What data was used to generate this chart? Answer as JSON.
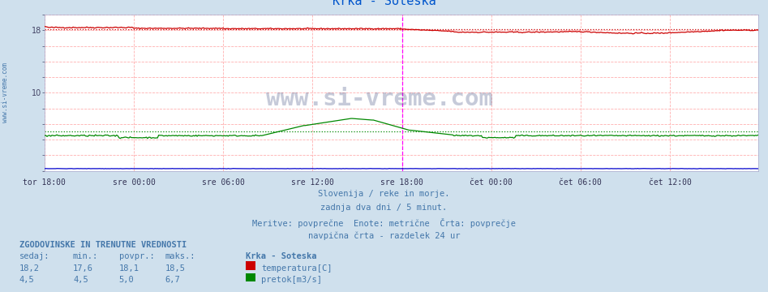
{
  "title": "Krka - Soteska",
  "title_color": "#0055cc",
  "fig_bg_color": "#cfe0ed",
  "plot_bg_color": "#ffffff",
  "total_points": 576,
  "ylim": [
    0,
    20
  ],
  "yticks": [
    0,
    2,
    4,
    6,
    8,
    10,
    12,
    14,
    16,
    18,
    20
  ],
  "xlabel_ticks": [
    "tor 18:00",
    "sre 00:00",
    "sre 06:00",
    "sre 12:00",
    "sre 18:00",
    "čet 00:00",
    "čet 06:00",
    "čet 12:00"
  ],
  "tick_positions": [
    0,
    72,
    144,
    216,
    288,
    360,
    432,
    504
  ],
  "temp_color": "#cc0000",
  "flow_color": "#008800",
  "height_color": "#0000cc",
  "grid_color": "#ffb0b0",
  "avg_temp": 18.1,
  "avg_flow": 5.0,
  "vline_color": "#ff00ff",
  "vline_pos": 288,
  "subtitle_lines": [
    "Slovenija / reke in morje.",
    "zadnja dva dni / 5 minut.",
    "Meritve: povprečne  Enote: metrične  Črta: povprečje",
    "navpična črta - razdelek 24 ur"
  ],
  "subtitle_color": "#4477aa",
  "watermark": "www.si-vreme.com",
  "watermark_color": "#334477",
  "side_label": "www.si-vreme.com",
  "side_label_color": "#4477aa",
  "hist_label": "ZGODOVINSKE IN TRENUTNE VREDNOSTI",
  "table_color": "#4477aa",
  "table_headers": [
    "sedaj:",
    "min.:",
    "povpr.:",
    "maks.:"
  ],
  "row1_vals": [
    "18,2",
    "17,6",
    "18,1",
    "18,5"
  ],
  "row2_vals": [
    "4,5",
    "4,5",
    "5,0",
    "6,7"
  ],
  "legend_title": "Krka - Soteska",
  "legend_items": [
    "temperatura[C]",
    "pretok[m3/s]"
  ],
  "legend_colors": [
    "#cc0000",
    "#008800"
  ]
}
